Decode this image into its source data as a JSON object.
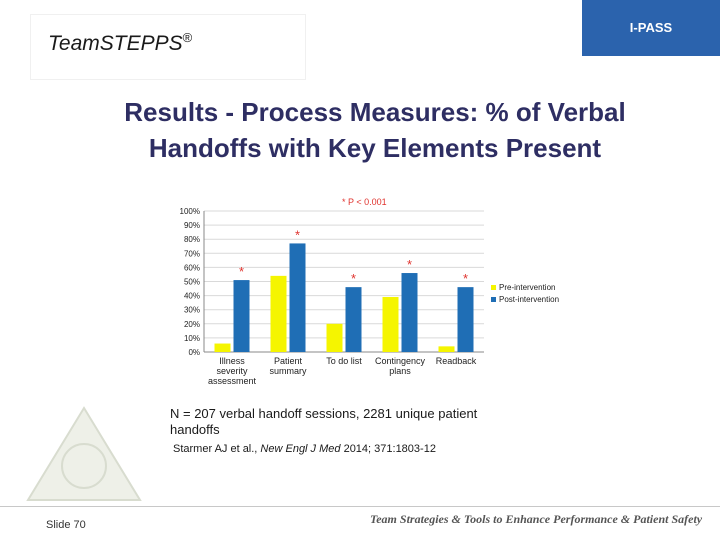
{
  "header": {
    "brand": "Team",
    "brand_bold": "STEPPS",
    "brand_mark": "®",
    "tab_label": "I-PASS"
  },
  "title_line1": "Results - Process Measures: % of Verbal",
  "title_line2": "Handoffs with Key Elements Present",
  "chart_data": {
    "type": "bar",
    "significance_note": "* P < 0.001",
    "categories": [
      [
        "Illness",
        "severity",
        "assessment"
      ],
      [
        "Patient",
        "summary"
      ],
      [
        "To do list"
      ],
      [
        "Contingency",
        "plans"
      ],
      [
        "Readback"
      ]
    ],
    "series": [
      {
        "name": "Pre-intervention",
        "color": "#f5f500",
        "values": [
          6,
          54,
          20,
          39,
          4
        ]
      },
      {
        "name": "Post-intervention",
        "color": "#1f6eb5",
        "values": [
          51,
          77,
          46,
          56,
          46
        ]
      }
    ],
    "significance_markers": [
      "*",
      "*",
      "*",
      "*",
      "*"
    ],
    "yticks": [
      "0%",
      "10%",
      "20%",
      "30%",
      "40%",
      "50%",
      "60%",
      "70%",
      "80%",
      "90%",
      "100%"
    ],
    "ylim": [
      0,
      100
    ],
    "legend_position": "right"
  },
  "footnote": "N = 207 verbal handoff sessions, 2281 unique patient handoffs",
  "citation": {
    "authors": "Starmer AJ et al., ",
    "journal": "New Engl J Med",
    "details": " 2014; 371:1803-12"
  },
  "footer": {
    "slide": "Slide 70",
    "tagline": "Team Strategies & Tools to Enhance Performance & Patient Safety"
  },
  "colors": {
    "accent": "#2b63ad",
    "title": "#2e2e63",
    "marker": "#e0332e"
  }
}
